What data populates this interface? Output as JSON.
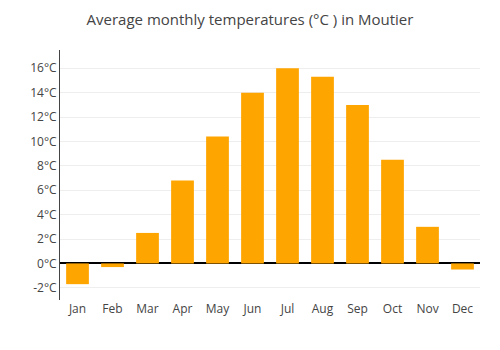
{
  "chart_data": {
    "type": "bar",
    "title": "Average monthly temperatures (°C ) in Moutier",
    "categories": [
      "Jan",
      "Feb",
      "Mar",
      "Apr",
      "May",
      "Jun",
      "Jul",
      "Aug",
      "Sep",
      "Oct",
      "Nov",
      "Dec"
    ],
    "values": [
      -1.7,
      -0.3,
      2.5,
      6.8,
      10.4,
      14.0,
      16.0,
      15.3,
      13.0,
      8.5,
      3.0,
      -0.5
    ],
    "color": "#FFA500",
    "ylim": [
      -3,
      17.5
    ],
    "yticks": [
      {
        "value": -2,
        "label": "-2°C"
      },
      {
        "value": 0,
        "label": "0°C"
      },
      {
        "value": 2,
        "label": "2°C"
      },
      {
        "value": 4,
        "label": "4°C"
      },
      {
        "value": 6,
        "label": "6°C"
      },
      {
        "value": 8,
        "label": "8°C"
      },
      {
        "value": 10,
        "label": "10°C"
      },
      {
        "value": 12,
        "label": "12°C"
      },
      {
        "value": 14,
        "label": "14°C"
      },
      {
        "value": 16,
        "label": "16°C"
      }
    ],
    "grid": true
  }
}
